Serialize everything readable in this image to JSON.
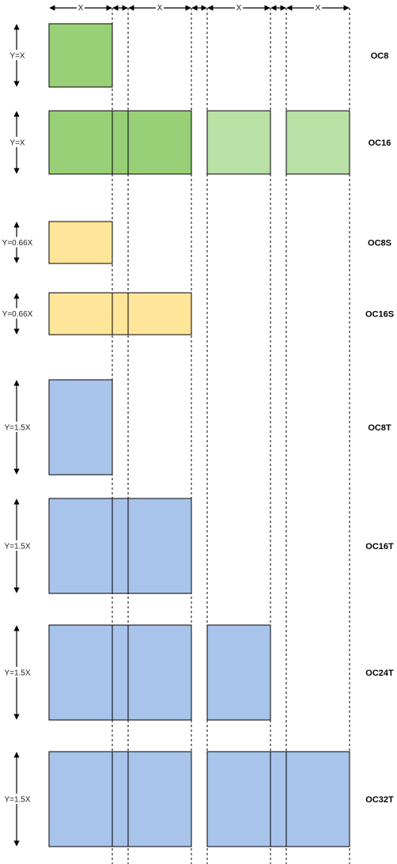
{
  "x_label": "X",
  "colors": {
    "green": "#97d077",
    "light_green": "#b9e0a5",
    "yellow": "#ffe599",
    "blue": "#a9c4eb"
  },
  "rows": [
    {
      "name": "OC8",
      "height_label": "Y=X",
      "aspect": 1.0,
      "units": [
        {
          "color": "green"
        }
      ]
    },
    {
      "name": "OC16",
      "height_label": "Y=X",
      "aspect": 1.0,
      "units": [
        {
          "color": "green"
        },
        {
          "color": "green"
        },
        {
          "color": "light_green",
          "separate": true
        },
        {
          "color": "light_green",
          "separate": true
        }
      ]
    },
    {
      "name": "OC8S",
      "height_label": "Y=0.66X",
      "aspect": 0.66,
      "units": [
        {
          "color": "yellow"
        }
      ]
    },
    {
      "name": "OC16S",
      "height_label": "Y=0.66X",
      "aspect": 0.66,
      "units": [
        {
          "color": "yellow"
        },
        {
          "color": "yellow"
        }
      ]
    },
    {
      "name": "OC8T",
      "height_label": "Y=1.5X",
      "aspect": 1.5,
      "units": [
        {
          "color": "blue"
        }
      ]
    },
    {
      "name": "OC16T",
      "height_label": "Y=1.5X",
      "aspect": 1.5,
      "units": [
        {
          "color": "blue"
        },
        {
          "color": "blue"
        }
      ]
    },
    {
      "name": "OC24T",
      "height_label": "Y=1.5X",
      "aspect": 1.5,
      "units": [
        {
          "color": "blue"
        },
        {
          "color": "blue"
        },
        {
          "color": "blue"
        }
      ]
    },
    {
      "name": "OC32T",
      "height_label": "Y=1.5X",
      "aspect": 1.5,
      "units": [
        {
          "color": "blue"
        },
        {
          "color": "blue"
        },
        {
          "color": "blue"
        },
        {
          "color": "blue"
        }
      ]
    }
  ]
}
